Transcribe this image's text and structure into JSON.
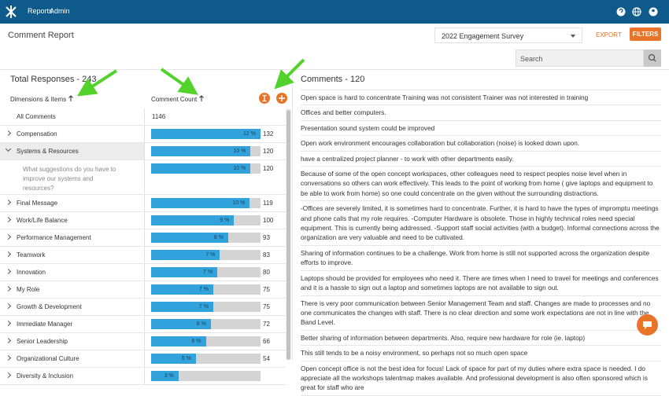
{
  "nav": {
    "items": [
      "Reports",
      "Admin"
    ]
  },
  "header": {
    "title": "Comment Report",
    "survey": "2022 Engagement Survey",
    "export": "EXPORT",
    "filters": "FILTERS",
    "search_placeholder": "Search"
  },
  "left_panel": {
    "title": "Total Responses - 243",
    "columns": [
      "Dimensions & Items",
      "Comment Count"
    ],
    "rows": [
      {
        "name": "All Comments",
        "count": 1146
      },
      {
        "name": "Compensation",
        "percent": "12 %",
        "count": 132,
        "expandable": true
      },
      {
        "name": "Systems & Resources",
        "percent": "10 %",
        "count": 120,
        "expandable": true,
        "expanded": true,
        "selected": true
      },
      {
        "name": "What suggestions do you have to improve our systems and resources?",
        "percent": "10 %",
        "count": 120,
        "sub": true
      },
      {
        "name": "Final Message",
        "percent": "10 %",
        "count": 119,
        "expandable": true
      },
      {
        "name": "Work/Life Balance",
        "percent": "9 %",
        "count": 100,
        "expandable": true
      },
      {
        "name": "Performance Management",
        "percent": "8 %",
        "count": 93,
        "expandable": true
      },
      {
        "name": "Teamwork",
        "percent": "7 %",
        "count": 83,
        "expandable": true
      },
      {
        "name": "Innovation",
        "percent": "7 %",
        "count": 80,
        "expandable": true
      },
      {
        "name": "My Role",
        "percent": "7 %",
        "count": 75,
        "expandable": true
      },
      {
        "name": "Growth & Development",
        "percent": "7 %",
        "count": 75,
        "expandable": true
      },
      {
        "name": "Immediate Manager",
        "percent": "6 %",
        "count": 72,
        "expandable": true
      },
      {
        "name": "Senior Leadership",
        "percent": "6 %",
        "count": 66,
        "expandable": true
      },
      {
        "name": "Organizational Culture",
        "percent": "5 %",
        "count": 54,
        "expandable": true
      },
      {
        "name": "Diversity & Inclusion",
        "percent": "3 %",
        "expandable": true
      }
    ]
  },
  "comments": {
    "title": "Comments - 120",
    "items": [
      "Open space is hard to concentrate Training was not consistent Trainer was not interested in training",
      "Offices and better computers.",
      "Presentation sound system could be improved",
      "Open work environment encourages collaboration but collaboration (noise) is looked down upon.",
      "have a centralized project planner - to work with other departments easily.",
      "Because of some of the open concept workspaces, other colleagues need to respect peoples noise level when in conversations so others can work effectively. This leads to the point of working from home ( give laptops and equipment to be able to work from home) so one could concentrate on the given without the surrounding distractions.",
      "-Offices are severely limited, it is sometimes hard to concentrate. Further, it is hard to have the types of impromptu meetings and phone calls that my role requires. -Computer Hardware is obsolete. Those in highly technical roles need special equipment. This is currently being addressed. -Support staff social activities (with a budget). Informal connections across the organization are very valuable and need to be cultivated.",
      "Sharing of information continues to be a challenge. Work from home is still not supported across the organization despite efforts to improve.",
      "Laptops should be provided for employees who need it. There are times when I need to travel for meetings and conferences and it is a hassle to sign out a laptop and sometimes laptops are not available to sign out.",
      "There is very poor communication between Senior Management Team and staff. Changes are made to processes and no one communicates the changes with staff. There is no clear direction and some work expectations are not in line with the Band Level.",
      "Better sharing of information between departments. Also, require new hardware for role (ie. laptop)",
      "This still tends to be a noisy environment, so perhaps not so much open space",
      "Open concept office is not the best idea for focus! Lack of space for part of my duties where extra space is needed. I do appreciate all the workshops talentmap makes available. And professional development is also often sponsored which is great for staff who are"
    ]
  }
}
